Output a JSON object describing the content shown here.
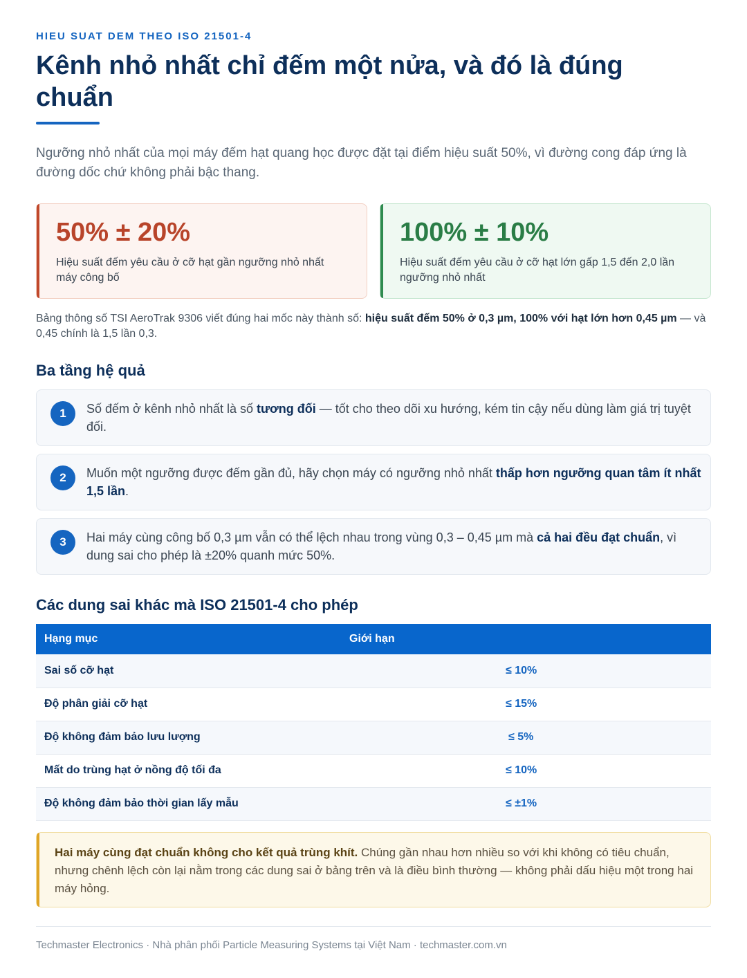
{
  "header": {
    "eyebrow": "HIEU SUAT DEM THEO ISO 21501-4",
    "title": "Kênh nhỏ nhất chỉ đếm một nửa, và đó là đúng chuẩn",
    "lead": "Ngưỡng nhỏ nhất của mọi máy đếm hạt quang học được đặt tại điểm hiệu suất 50%, vì đường cong đáp ứng là đường dốc chứ không phải bậc thang."
  },
  "stats": [
    {
      "value": "50% ± 20%",
      "desc": "Hiệu suất đếm yêu cầu ở cỡ hạt gần ngưỡng nhỏ nhất máy công bố",
      "color": "#b8442a"
    },
    {
      "value": "100% ± 10%",
      "desc": "Hiệu suất đếm yêu cầu ở cỡ hạt lớn gấp 1,5 đến 2,0 lần ngưỡng nhỏ nhất",
      "color": "#2a7d46"
    }
  ],
  "note": {
    "prefix": "Bảng thông số TSI AeroTrak 9306 viết đúng hai mốc này thành số: ",
    "bold": "hiệu suất đếm 50% ở 0,3 µm, 100% với hạt lớn hơn 0,45 µm",
    "suffix": " — và 0,45 chính là 1,5 lần 0,3."
  },
  "consequences": {
    "heading": "Ba tầng hệ quả",
    "items": [
      {
        "num": "1",
        "before": "Số đếm ở kênh nhỏ nhất là số ",
        "bold": "tương đối",
        "after": " — tốt cho theo dõi xu hướng, kém tin cậy nếu dùng làm giá trị tuyệt đối."
      },
      {
        "num": "2",
        "before": "Muốn một ngưỡng được đếm gần đủ, hãy chọn máy có ngưỡng nhỏ nhất ",
        "bold": "thấp hơn ngưỡng quan tâm ít nhất 1,5 lần",
        "after": "."
      },
      {
        "num": "3",
        "before": "Hai máy cùng công bố 0,3 µm vẫn có thể lệch nhau trong vùng 0,3 – 0,45 µm mà ",
        "bold": "cả hai đều đạt chuẩn",
        "after": ", vì dung sai cho phép là ±20% quanh mức 50%."
      }
    ]
  },
  "tolerances": {
    "heading": "Các dung sai khác mà ISO 21501-4 cho phép",
    "columns": [
      "Hạng mục",
      "Giới hạn"
    ],
    "rows": [
      {
        "item": "Sai số cỡ hạt",
        "limit": "≤ 10%"
      },
      {
        "item": "Độ phân giải cỡ hạt",
        "limit": "≤ 15%"
      },
      {
        "item": "Độ không đảm bảo lưu lượng",
        "limit": "≤ 5%"
      },
      {
        "item": "Mất do trùng hạt ở nồng độ tối đa",
        "limit": "≤ 10%"
      },
      {
        "item": "Độ không đảm bảo thời gian lấy mẫu",
        "limit": "≤ ±1%"
      }
    ]
  },
  "callout": {
    "bold": "Hai máy cùng đạt chuẩn không cho kết quả trùng khít.",
    "text": " Chúng gần nhau hơn nhiều so với khi không có tiêu chuẩn, nhưng chênh lệch còn lại nằm trong các dung sai ở bảng trên và là điều bình thường — không phải dấu hiệu một trong hai máy hỏng."
  },
  "footer": "Techmaster Electronics · Nhà phân phối Particle Measuring Systems tại Việt Nam · techmaster.com.vn"
}
